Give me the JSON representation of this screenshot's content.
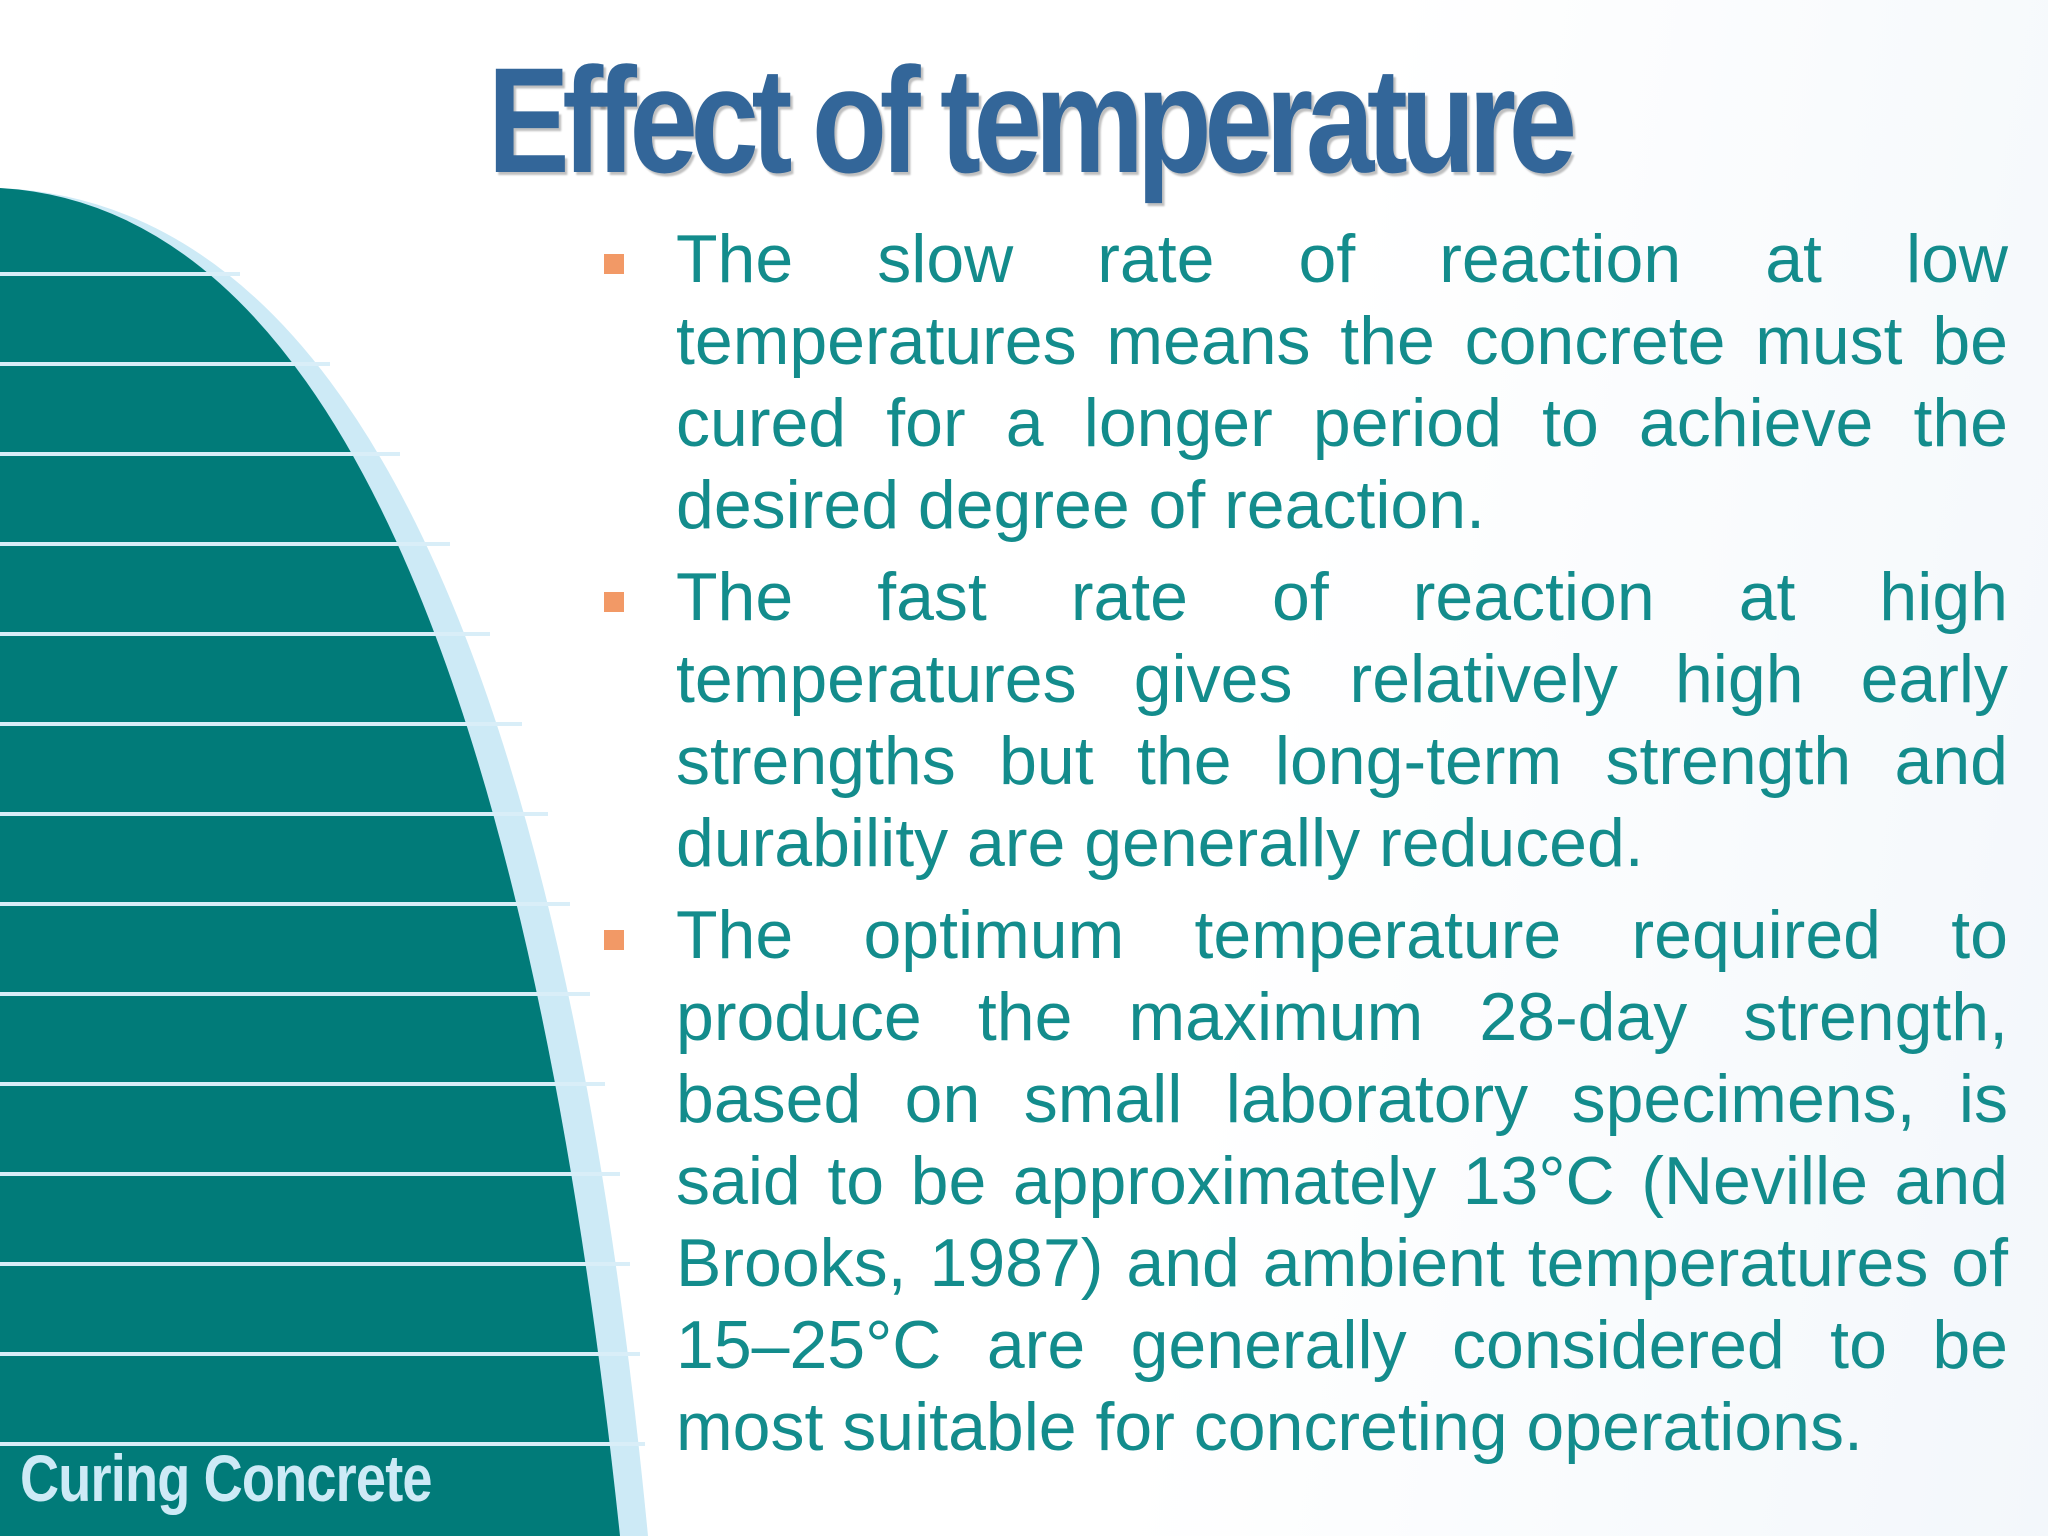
{
  "slide": {
    "title": "Effect of temperature",
    "footer_label": "Curing Concrete",
    "bullets": [
      {
        "text": "The slow rate of reaction at low temperatures means the concrete must be cured for a longer period to achieve the desired degree of reaction."
      },
      {
        "text": "The fast rate of reaction at high temperatures gives relatively high early strengths but the long-term strength and durability are generally reduced."
      },
      {
        "text": "The optimum temperature required to produce the maximum 28-day strength, based on small laboratory specimens, is said to be approximately 13°C (Neville and Brooks, 1987) and ambient temperatures of 15–25°C are generally considered to be most suitable for concreting operations."
      }
    ]
  },
  "colors": {
    "title": "#336699",
    "body_text": "#138c8c",
    "bullet_marker": "#f29966",
    "decor_teal": "#017b79",
    "decor_light_blue": "#cdeaf6",
    "stripe_line": "#d9eef8"
  },
  "icons": {
    "bullet": "square-bullet-icon"
  }
}
